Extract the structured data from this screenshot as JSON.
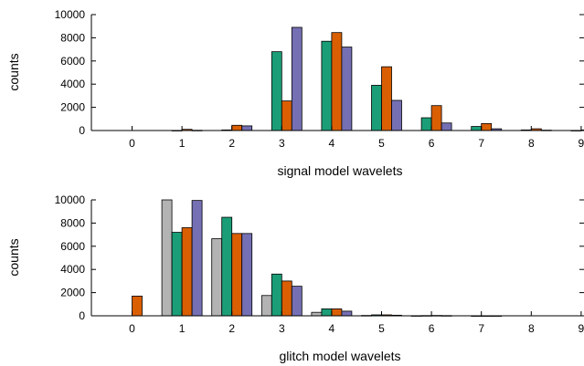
{
  "chart_data": [
    {
      "type": "bar",
      "xlabel": "signal model wavelets",
      "ylabel": "counts",
      "ylim": [
        0,
        10000
      ],
      "yticks": [
        0,
        2000,
        4000,
        6000,
        8000,
        10000
      ],
      "categories": [
        "0",
        "1",
        "2",
        "3",
        "4",
        "5",
        "6",
        "7",
        "8",
        "9"
      ],
      "series": [
        {
          "color": "#b3b3b3",
          "values": [
            0,
            0,
            0,
            0,
            0,
            0,
            0,
            0,
            0,
            0
          ]
        },
        {
          "color": "#1b9e77",
          "values": [
            0,
            10,
            50,
            6800,
            7700,
            3900,
            1100,
            350,
            50,
            10
          ]
        },
        {
          "color": "#d95f02",
          "values": [
            0,
            100,
            450,
            2550,
            8450,
            5500,
            2150,
            600,
            150,
            50
          ]
        },
        {
          "color": "#7570b3",
          "values": [
            0,
            20,
            400,
            8900,
            7200,
            2600,
            650,
            150,
            30,
            10
          ]
        }
      ],
      "grid": false,
      "legend": "none"
    },
    {
      "type": "bar",
      "xlabel": "glitch model wavelets",
      "ylabel": "counts",
      "ylim": [
        0,
        10000
      ],
      "yticks": [
        0,
        2000,
        4000,
        6000,
        8000,
        10000
      ],
      "categories": [
        "0",
        "1",
        "2",
        "3",
        "4",
        "5",
        "6",
        "7",
        "8",
        "9"
      ],
      "series": [
        {
          "color": "#b3b3b3",
          "values": [
            0,
            10000,
            6650,
            1750,
            300,
            30,
            10,
            0,
            0,
            0
          ]
        },
        {
          "color": "#1b9e77",
          "values": [
            0,
            7200,
            8500,
            3600,
            600,
            80,
            20,
            5,
            0,
            0
          ]
        },
        {
          "color": "#d95f02",
          "values": [
            1700,
            7600,
            7100,
            3000,
            600,
            80,
            30,
            5,
            0,
            0
          ]
        },
        {
          "color": "#7570b3",
          "values": [
            0,
            9950,
            7100,
            2550,
            400,
            50,
            20,
            5,
            0,
            0
          ]
        }
      ],
      "grid": false,
      "legend": "none"
    }
  ]
}
